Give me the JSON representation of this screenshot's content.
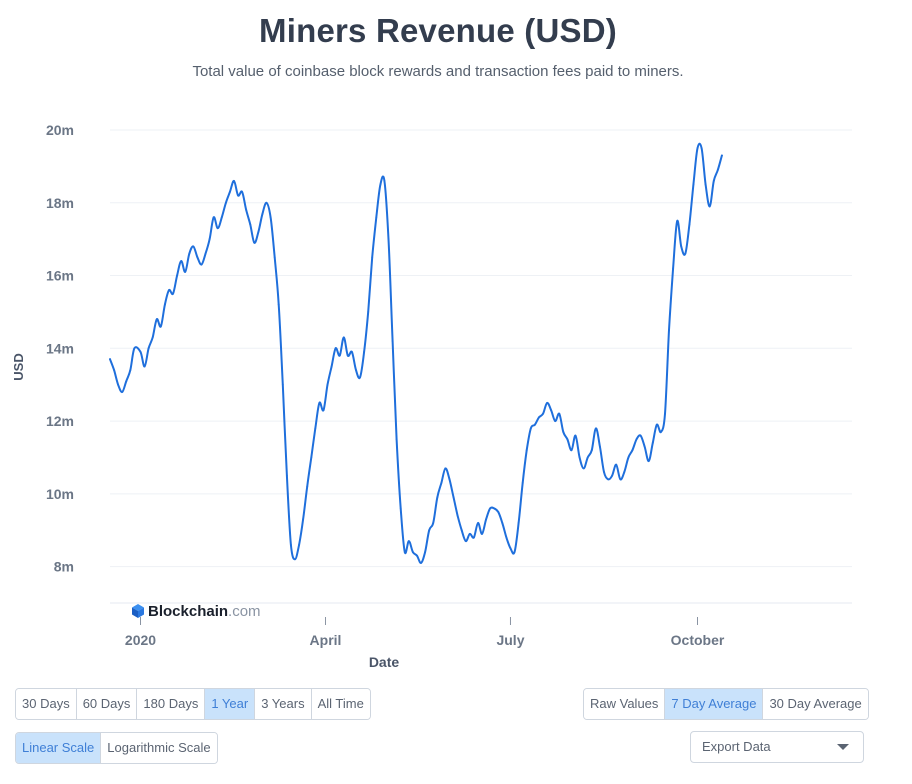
{
  "title": "Miners Revenue (USD)",
  "subtitle": "Total value of coinbase block rewards and transaction fees paid to miners.",
  "watermark": {
    "brand": "Blockchain",
    "suffix": ".com"
  },
  "colors": {
    "line": "#1f6fdc",
    "grid": "#eef1f5",
    "axis_text": "#6b7686",
    "active_bg": "#c9e2fb",
    "active_text": "#3f7fd6"
  },
  "range_buttons": [
    {
      "label": "30 Days",
      "active": false
    },
    {
      "label": "60 Days",
      "active": false
    },
    {
      "label": "180 Days",
      "active": false
    },
    {
      "label": "1 Year",
      "active": true
    },
    {
      "label": "3 Years",
      "active": false
    },
    {
      "label": "All Time",
      "active": false
    }
  ],
  "average_buttons": [
    {
      "label": "Raw Values",
      "active": false
    },
    {
      "label": "7 Day Average",
      "active": true
    },
    {
      "label": "30 Day Average",
      "active": false
    }
  ],
  "scale_buttons": [
    {
      "label": "Linear Scale",
      "active": true
    },
    {
      "label": "Logarithmic Scale",
      "active": false
    }
  ],
  "export": {
    "label": "Export Data",
    "icon": "chevron-down-icon"
  },
  "chart_data": {
    "type": "line",
    "title": "Miners Revenue (USD)",
    "xlabel": "Date",
    "ylabel": "USD",
    "x_ticks": [
      {
        "label": "2020",
        "date": "2020-01-01"
      },
      {
        "label": "April",
        "date": "2020-04-01"
      },
      {
        "label": "July",
        "date": "2020-07-01"
      },
      {
        "label": "October",
        "date": "2020-10-01"
      }
    ],
    "y_ticks": [
      {
        "label": "8m",
        "value": 8000000
      },
      {
        "label": "10m",
        "value": 10000000
      },
      {
        "label": "12m",
        "value": 12000000
      },
      {
        "label": "14m",
        "value": 14000000
      },
      {
        "label": "16m",
        "value": 16000000
      },
      {
        "label": "18m",
        "value": 18000000
      },
      {
        "label": "20m",
        "value": 20000000
      }
    ],
    "ylim": [
      7000000,
      20000000
    ],
    "xlim": [
      "2019-12-17",
      "2020-12-16"
    ],
    "grid": true,
    "series": [
      {
        "values": [
          [
            "2019-12-17",
            13.7
          ],
          [
            "2019-12-19",
            13.4
          ],
          [
            "2019-12-21",
            13.0
          ],
          [
            "2019-12-23",
            12.8
          ],
          [
            "2019-12-25",
            13.1
          ],
          [
            "2019-12-27",
            13.4
          ],
          [
            "2019-12-29",
            14.0
          ],
          [
            "2020-01-01",
            13.9
          ],
          [
            "2020-01-03",
            13.5
          ],
          [
            "2020-01-05",
            14.0
          ],
          [
            "2020-01-07",
            14.3
          ],
          [
            "2020-01-09",
            14.8
          ],
          [
            "2020-01-11",
            14.6
          ],
          [
            "2020-01-13",
            15.2
          ],
          [
            "2020-01-15",
            15.6
          ],
          [
            "2020-01-17",
            15.5
          ],
          [
            "2020-01-19",
            16.0
          ],
          [
            "2020-01-21",
            16.4
          ],
          [
            "2020-01-23",
            16.1
          ],
          [
            "2020-01-25",
            16.6
          ],
          [
            "2020-01-27",
            16.8
          ],
          [
            "2020-01-29",
            16.5
          ],
          [
            "2020-01-31",
            16.3
          ],
          [
            "2020-02-02",
            16.6
          ],
          [
            "2020-02-04",
            17.0
          ],
          [
            "2020-02-06",
            17.6
          ],
          [
            "2020-02-08",
            17.3
          ],
          [
            "2020-02-10",
            17.6
          ],
          [
            "2020-02-12",
            18.0
          ],
          [
            "2020-02-14",
            18.3
          ],
          [
            "2020-02-16",
            18.6
          ],
          [
            "2020-02-18",
            18.2
          ],
          [
            "2020-02-20",
            18.3
          ],
          [
            "2020-02-22",
            17.8
          ],
          [
            "2020-02-24",
            17.4
          ],
          [
            "2020-02-26",
            16.9
          ],
          [
            "2020-02-28",
            17.2
          ],
          [
            "2020-03-01",
            17.7
          ],
          [
            "2020-03-03",
            18.0
          ],
          [
            "2020-03-05",
            17.6
          ],
          [
            "2020-03-07",
            16.5
          ],
          [
            "2020-03-09",
            15.2
          ],
          [
            "2020-03-11",
            13.0
          ],
          [
            "2020-03-13",
            10.5
          ],
          [
            "2020-03-15",
            8.6
          ],
          [
            "2020-03-17",
            8.2
          ],
          [
            "2020-03-19",
            8.6
          ],
          [
            "2020-03-21",
            9.3
          ],
          [
            "2020-03-23",
            10.2
          ],
          [
            "2020-03-25",
            11.0
          ],
          [
            "2020-03-27",
            11.8
          ],
          [
            "2020-03-29",
            12.5
          ],
          [
            "2020-03-31",
            12.3
          ],
          [
            "2020-04-02",
            13.0
          ],
          [
            "2020-04-04",
            13.5
          ],
          [
            "2020-04-06",
            14.0
          ],
          [
            "2020-04-08",
            13.8
          ],
          [
            "2020-04-10",
            14.3
          ],
          [
            "2020-04-12",
            13.8
          ],
          [
            "2020-04-14",
            13.9
          ],
          [
            "2020-04-16",
            13.4
          ],
          [
            "2020-04-18",
            13.2
          ],
          [
            "2020-04-20",
            13.9
          ],
          [
            "2020-04-22",
            15.0
          ],
          [
            "2020-04-24",
            16.5
          ],
          [
            "2020-04-26",
            17.6
          ],
          [
            "2020-04-28",
            18.5
          ],
          [
            "2020-04-30",
            18.6
          ],
          [
            "2020-05-02",
            17.0
          ],
          [
            "2020-05-04",
            14.2
          ],
          [
            "2020-05-06",
            11.5
          ],
          [
            "2020-05-08",
            9.6
          ],
          [
            "2020-05-10",
            8.4
          ],
          [
            "2020-05-12",
            8.7
          ],
          [
            "2020-05-14",
            8.4
          ],
          [
            "2020-05-16",
            8.3
          ],
          [
            "2020-05-18",
            8.1
          ],
          [
            "2020-05-20",
            8.4
          ],
          [
            "2020-05-22",
            9.0
          ],
          [
            "2020-05-24",
            9.2
          ],
          [
            "2020-05-26",
            9.9
          ],
          [
            "2020-05-28",
            10.3
          ],
          [
            "2020-05-30",
            10.7
          ],
          [
            "2020-06-01",
            10.4
          ],
          [
            "2020-06-03",
            9.9
          ],
          [
            "2020-06-05",
            9.4
          ],
          [
            "2020-06-07",
            9.0
          ],
          [
            "2020-06-09",
            8.7
          ],
          [
            "2020-06-11",
            8.9
          ],
          [
            "2020-06-13",
            8.8
          ],
          [
            "2020-06-15",
            9.2
          ],
          [
            "2020-06-17",
            8.9
          ],
          [
            "2020-06-19",
            9.3
          ],
          [
            "2020-06-21",
            9.6
          ],
          [
            "2020-06-23",
            9.6
          ],
          [
            "2020-06-25",
            9.5
          ],
          [
            "2020-06-27",
            9.2
          ],
          [
            "2020-06-29",
            8.8
          ],
          [
            "2020-07-01",
            8.5
          ],
          [
            "2020-07-03",
            8.4
          ],
          [
            "2020-07-05",
            9.2
          ],
          [
            "2020-07-07",
            10.3
          ],
          [
            "2020-07-09",
            11.2
          ],
          [
            "2020-07-11",
            11.8
          ],
          [
            "2020-07-13",
            11.9
          ],
          [
            "2020-07-15",
            12.1
          ],
          [
            "2020-07-17",
            12.2
          ],
          [
            "2020-07-19",
            12.5
          ],
          [
            "2020-07-21",
            12.3
          ],
          [
            "2020-07-23",
            12.0
          ],
          [
            "2020-07-25",
            12.2
          ],
          [
            "2020-07-27",
            11.7
          ],
          [
            "2020-07-29",
            11.5
          ],
          [
            "2020-07-31",
            11.2
          ],
          [
            "2020-08-02",
            11.6
          ],
          [
            "2020-08-04",
            11.0
          ],
          [
            "2020-08-06",
            10.7
          ],
          [
            "2020-08-08",
            11.0
          ],
          [
            "2020-08-10",
            11.2
          ],
          [
            "2020-08-12",
            11.8
          ],
          [
            "2020-08-14",
            11.3
          ],
          [
            "2020-08-16",
            10.6
          ],
          [
            "2020-08-18",
            10.4
          ],
          [
            "2020-08-20",
            10.5
          ],
          [
            "2020-08-22",
            10.8
          ],
          [
            "2020-08-24",
            10.4
          ],
          [
            "2020-08-26",
            10.6
          ],
          [
            "2020-08-28",
            11.0
          ],
          [
            "2020-08-30",
            11.2
          ],
          [
            "2020-09-01",
            11.5
          ],
          [
            "2020-09-03",
            11.6
          ],
          [
            "2020-09-05",
            11.3
          ],
          [
            "2020-09-07",
            10.9
          ],
          [
            "2020-09-09",
            11.4
          ],
          [
            "2020-09-11",
            11.9
          ],
          [
            "2020-09-13",
            11.7
          ],
          [
            "2020-09-15",
            12.2
          ],
          [
            "2020-09-17",
            14.5
          ],
          [
            "2020-09-19",
            16.2
          ],
          [
            "2020-09-21",
            17.5
          ],
          [
            "2020-09-23",
            16.8
          ],
          [
            "2020-09-25",
            16.6
          ],
          [
            "2020-09-27",
            17.4
          ],
          [
            "2020-09-29",
            18.5
          ],
          [
            "2020-10-01",
            19.5
          ],
          [
            "2020-10-03",
            19.5
          ],
          [
            "2020-10-05",
            18.5
          ],
          [
            "2020-10-07",
            17.9
          ],
          [
            "2020-10-09",
            18.6
          ],
          [
            "2020-10-11",
            18.9
          ],
          [
            "2020-10-13",
            19.3
          ]
        ]
      }
    ]
  }
}
